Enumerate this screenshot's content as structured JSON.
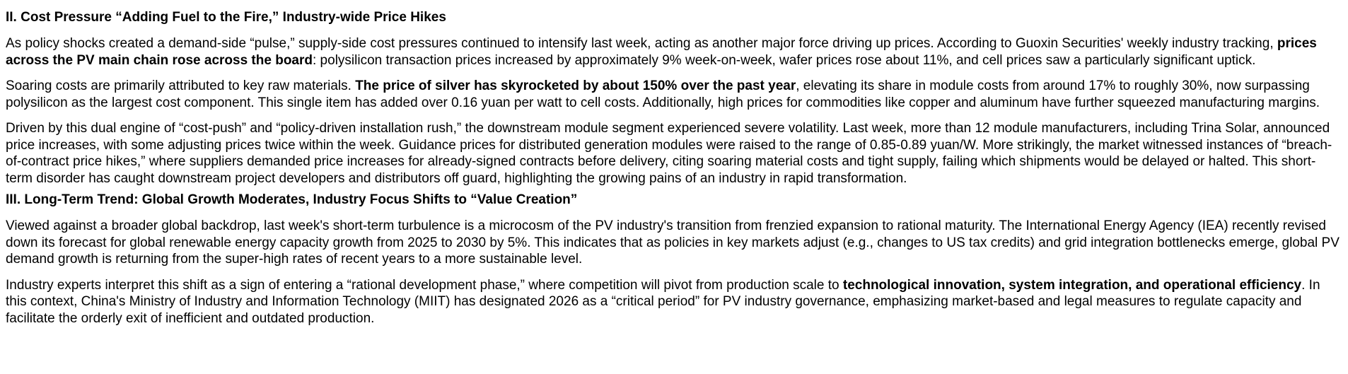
{
  "section2": {
    "heading": "II. Cost Pressure “Adding Fuel to the Fire,” Industry-wide Price Hikes",
    "p1": {
      "a": "As policy shocks created a demand-side “pulse,” supply-side cost pressures continued to intensify last week, acting as another major force driving up prices. According to Guoxin Securities' weekly industry tracking, ",
      "bold": "prices across the PV main chain rose across the board",
      "b": ": polysilicon transaction prices increased by approximately 9% week-on-week, wafer prices rose about 11%, and cell prices saw a particularly significant uptick."
    },
    "p2": {
      "a": "Soaring costs are primarily attributed to key raw materials. ",
      "bold": "The price of silver has skyrocketed by about 150% over the past year",
      "b": ", elevating its share in module costs from around 17% to roughly 30%, now surpassing polysilicon as the largest cost component. This single item has added over 0.16 yuan per watt to cell costs. Additionally, high prices for commodities like copper and aluminum have further squeezed manufacturing margins."
    },
    "p3": "Driven by this dual engine of “cost-push” and “policy-driven installation rush,” the downstream module segment experienced severe volatility. Last week, more than 12 module manufacturers, including Trina Solar, announced price increases, with some adjusting prices twice within the week. Guidance prices for distributed generation modules were raised to the range of 0.85-0.89 yuan/W. More strikingly, the market witnessed instances of “breach-of-contract price hikes,” where suppliers demanded price increases for already-signed contracts before delivery, citing soaring material costs and tight supply, failing which shipments would be delayed or halted. This short-term disorder has caught downstream project developers and distributors off guard, highlighting the growing pains of an industry in rapid transformation."
  },
  "section3": {
    "heading": "III. Long-Term Trend: Global Growth Moderates, Industry Focus Shifts to “Value Creation”",
    "p1": "Viewed against a broader global backdrop, last week's short-term turbulence is a microcosm of the PV industry's transition from frenzied expansion to rational maturity. The International Energy Agency (IEA) recently revised down its forecast for global renewable energy capacity growth from 2025 to 2030 by 5%. This indicates that as policies in key markets adjust (e.g., changes to US tax credits) and grid integration bottlenecks emerge, global PV demand growth is returning from the super-high rates of recent years to a more sustainable level.",
    "p2": {
      "a": "Industry experts interpret this shift as a sign of entering a “rational development phase,” where competition will pivot from production scale to ",
      "bold": "technological innovation, system integration, and operational efficiency",
      "b": ". In this context, China's Ministry of Industry and Information Technology (MIIT) has designated 2026 as a “critical period” for PV industry governance, emphasizing market-based and legal measures to regulate capacity and facilitate the orderly exit of inefficient and outdated production."
    }
  }
}
